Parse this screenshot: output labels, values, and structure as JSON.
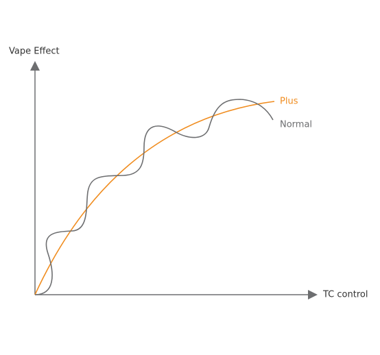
{
  "axes": {
    "y_label": "Vape Effect",
    "x_label": "TC control"
  },
  "curves": [
    {
      "label": "Plus"
    },
    {
      "label": "Normal"
    }
  ]
}
